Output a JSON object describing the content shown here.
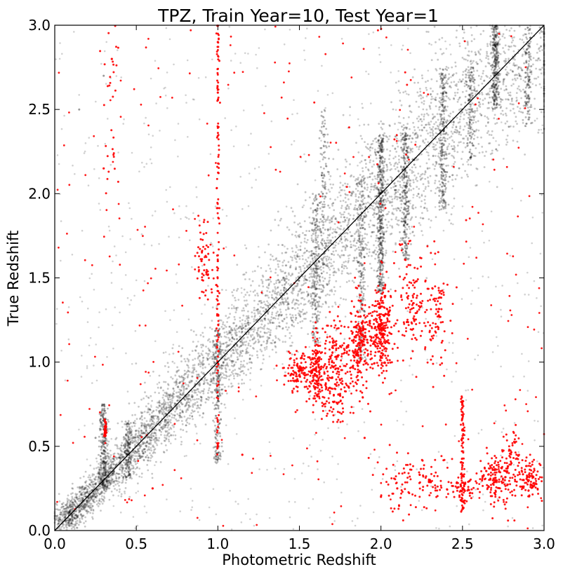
{
  "chart_data": {
    "type": "scatter",
    "title": "TPZ, Train Year=10, Test Year=1",
    "xlabel": "Photometric Redshift",
    "ylabel": "True Redshift",
    "xlim": [
      0.0,
      3.0
    ],
    "ylim": [
      0.0,
      3.0
    ],
    "xticks": [
      "0.0",
      "0.5",
      "1.0",
      "1.5",
      "2.0",
      "2.5",
      "3.0"
    ],
    "yticks": [
      "0.0",
      "0.5",
      "1.0",
      "1.5",
      "2.0",
      "2.5",
      "3.0"
    ],
    "grid": false,
    "reference_line": {
      "from": [
        0,
        0
      ],
      "to": [
        3,
        3
      ],
      "color": "#000000"
    },
    "series": [
      {
        "color": "#000000",
        "description": "main population (black points, semi-transparent)",
        "sample_points": [
          [
            0.1,
            0.1
          ],
          [
            0.2,
            0.2
          ],
          [
            0.3,
            0.3
          ],
          [
            0.4,
            0.4
          ],
          [
            0.5,
            0.5
          ],
          [
            0.6,
            0.6
          ],
          [
            0.7,
            0.7
          ],
          [
            0.8,
            0.8
          ],
          [
            0.9,
            0.9
          ],
          [
            1.0,
            1.0
          ],
          [
            1.1,
            1.1
          ],
          [
            1.2,
            1.2
          ],
          [
            1.3,
            1.3
          ],
          [
            1.4,
            1.4
          ],
          [
            1.5,
            1.5
          ],
          [
            1.6,
            1.6
          ],
          [
            1.7,
            1.7
          ],
          [
            1.8,
            1.8
          ],
          [
            1.9,
            1.9
          ],
          [
            2.0,
            2.0
          ],
          [
            2.1,
            2.1
          ],
          [
            2.2,
            2.2
          ],
          [
            2.4,
            2.4
          ],
          [
            2.5,
            2.5
          ],
          [
            2.7,
            2.7
          ],
          [
            2.9,
            2.9
          ],
          [
            0.3,
            0.6
          ],
          [
            0.25,
            0.55
          ],
          [
            1.0,
            0.8
          ],
          [
            1.9,
            1.3
          ],
          [
            2.0,
            1.8
          ],
          [
            2.15,
            2.0
          ],
          [
            2.4,
            2.6
          ],
          [
            2.7,
            2.8
          ],
          [
            0.3,
            2.7
          ],
          [
            0.15,
            2.5
          ],
          [
            1.65,
            2.4
          ],
          [
            2.85,
            2.7
          ]
        ]
      },
      {
        "color": "#ff0000",
        "description": "outliers (red points)",
        "sample_points": [
          [
            0.31,
            0.62
          ],
          [
            0.31,
            0.58
          ],
          [
            1.0,
            1.6
          ],
          [
            1.0,
            2.6
          ],
          [
            1.0,
            2.9
          ],
          [
            1.0,
            0.5
          ],
          [
            0.9,
            1.6
          ],
          [
            1.5,
            0.95
          ],
          [
            1.6,
            0.95
          ],
          [
            1.7,
            1.0
          ],
          [
            1.8,
            1.1
          ],
          [
            1.9,
            1.15
          ],
          [
            2.0,
            1.25
          ],
          [
            2.05,
            1.3
          ],
          [
            2.2,
            1.35
          ],
          [
            2.35,
            1.3
          ],
          [
            1.65,
            0.75
          ],
          [
            1.75,
            0.8
          ],
          [
            2.5,
            0.25
          ],
          [
            2.5,
            0.6
          ],
          [
            2.5,
            0.75
          ],
          [
            2.7,
            0.3
          ],
          [
            2.8,
            0.4
          ],
          [
            2.9,
            0.3
          ],
          [
            2.3,
            0.3
          ],
          [
            2.1,
            0.25
          ],
          [
            0.35,
            2.8
          ],
          [
            0.3,
            2.15
          ],
          [
            2.0,
            0.2
          ],
          [
            0.6,
            0.25
          ],
          [
            1.15,
            0.45
          ],
          [
            1.9,
            0.55
          ]
        ]
      }
    ]
  }
}
